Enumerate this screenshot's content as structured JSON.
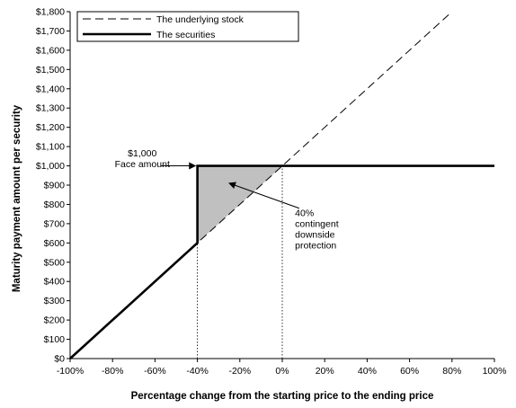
{
  "chart_data": {
    "type": "line",
    "xlabel": "Percentage change from the starting price to the ending price",
    "ylabel": "Maturity payment amount per security",
    "xlim": [
      -100,
      100
    ],
    "ylim": [
      0,
      1800
    ],
    "x_ticks": [
      -100,
      -80,
      -60,
      -40,
      -20,
      0,
      20,
      40,
      60,
      80,
      100
    ],
    "x_tick_labels": [
      "-100%",
      "-80%",
      "-60%",
      "-40%",
      "-20%",
      "0%",
      "20%",
      "40%",
      "60%",
      "80%",
      "100%"
    ],
    "y_ticks": [
      0,
      100,
      200,
      300,
      400,
      500,
      600,
      700,
      800,
      900,
      1000,
      1100,
      1200,
      1300,
      1400,
      1500,
      1600,
      1700,
      1800
    ],
    "y_tick_labels": [
      "$0",
      "$100",
      "$200",
      "$300",
      "$400",
      "$500",
      "$600",
      "$700",
      "$800",
      "$900",
      "$1,000",
      "$1,100",
      "$1,200",
      "$1,300",
      "$1,400",
      "$1,500",
      "$1,600",
      "$1,700",
      "$1,800"
    ],
    "grid": false,
    "legend_position": "top-left",
    "series": [
      {
        "name": "The underlying stock",
        "style": "dashed",
        "color": "#000000",
        "points": [
          [
            -100,
            0
          ],
          [
            -40,
            600
          ],
          [
            0,
            1000
          ],
          [
            80,
            1800
          ]
        ]
      },
      {
        "name": "The securities",
        "style": "solid-thick",
        "color": "#000000",
        "points": [
          [
            -100,
            0
          ],
          [
            -40,
            600
          ],
          [
            -40,
            1000
          ],
          [
            100,
            1000
          ]
        ]
      }
    ],
    "shaded_region": {
      "color": "#c0c0c0",
      "points": [
        [
          -40,
          600
        ],
        [
          -40,
          1000
        ],
        [
          0,
          1000
        ]
      ]
    },
    "guide_lines": [
      {
        "x": -40,
        "from": 0,
        "to": 600
      },
      {
        "x": 0,
        "from": 0,
        "to": 1000
      }
    ],
    "annotations": [
      {
        "id": "face",
        "lines": [
          "$1,000",
          "Face amount"
        ],
        "text_at": [
          -66,
          1050
        ],
        "arrow_from": [
          -57,
          1000
        ],
        "arrow_to": [
          -41,
          1000
        ]
      },
      {
        "id": "protection",
        "lines": [
          "40%",
          "contingent",
          "downside",
          "protection"
        ],
        "text_at": [
          6,
          740
        ],
        "arrow_from": [
          8,
          780
        ],
        "arrow_to": [
          -25,
          910
        ]
      }
    ]
  }
}
